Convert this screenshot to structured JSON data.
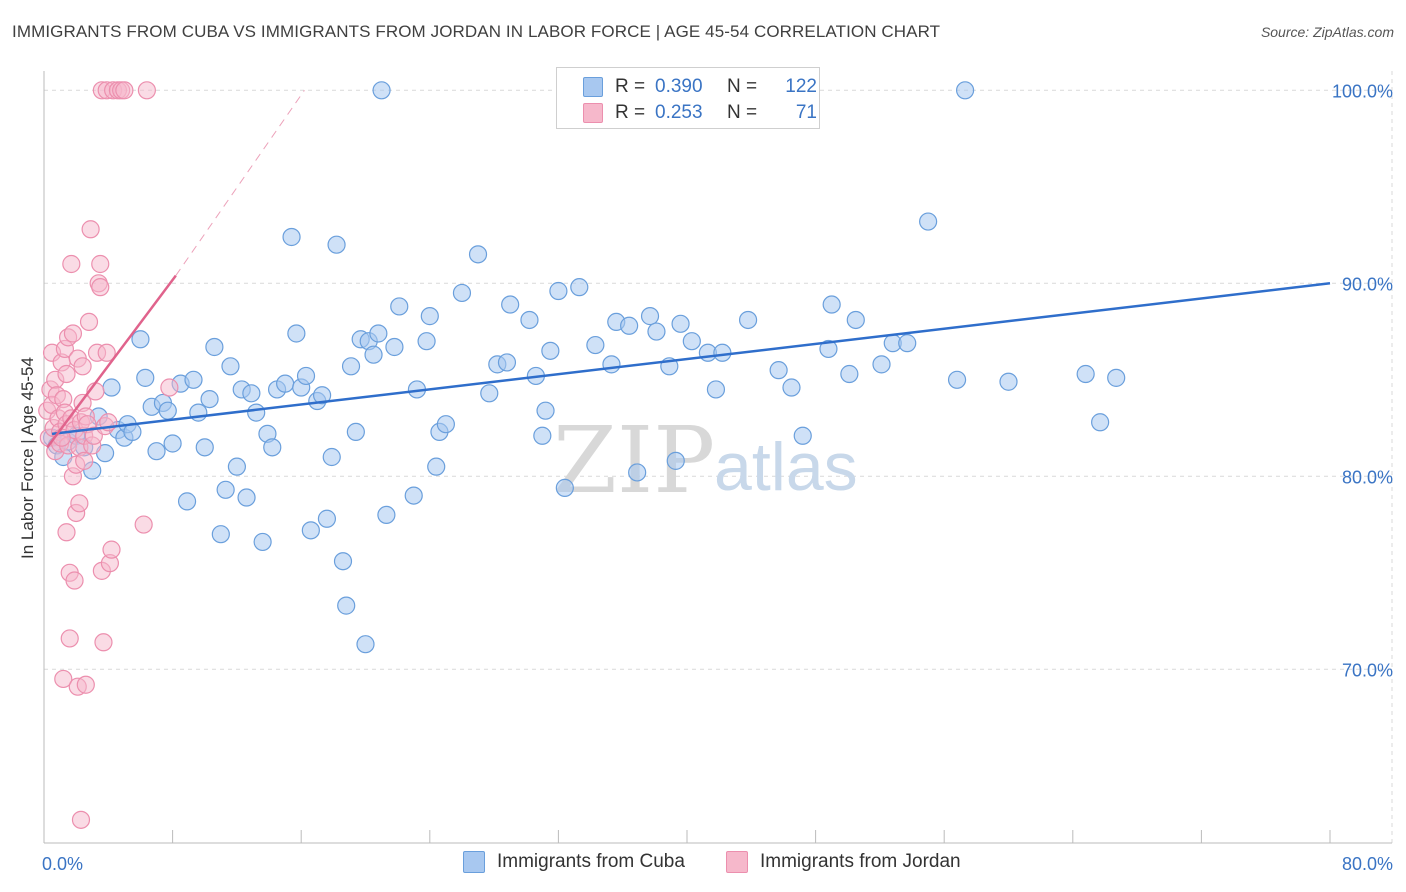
{
  "title": "IMMIGRANTS FROM CUBA VS IMMIGRANTS FROM JORDAN IN LABOR FORCE | AGE 45-54 CORRELATION CHART",
  "source": "Source: ZipAtlas.com",
  "colors": {
    "cuba_fill": "#a8c8f0",
    "cuba_stroke": "#6a9fdc",
    "cuba_line": "#2f6ecb",
    "jordan_fill": "#f6b8cb",
    "jordan_stroke": "#ec8fae",
    "jordan_line": "#e0638c",
    "tick": "#3a74c4",
    "grid": "#d9d9d9"
  },
  "legend_top": {
    "rows": [
      {
        "r_label": "R =",
        "r_value": "0.390",
        "n_label": "N =",
        "n_value": "122"
      },
      {
        "r_label": "R =",
        "r_value": "0.253",
        "n_label": "N =",
        "n_value": "71"
      }
    ]
  },
  "legend_bottom": {
    "cuba": "Immigrants from Cuba",
    "jordan": "Immigrants from Jordan"
  },
  "watermark": {
    "zip": "ZIP",
    "atlas": "atlas"
  },
  "chart_data": {
    "type": "scatter",
    "title": "IMMIGRANTS FROM CUBA VS IMMIGRANTS FROM JORDAN IN LABOR FORCE | AGE 45-54 CORRELATION CHART",
    "xlabel": "",
    "ylabel": "In Labor Force | Age 45-54",
    "xlim": [
      0,
      80
    ],
    "ylim": [
      61,
      101
    ],
    "x_tick_labels": [
      "0.0%",
      "80.0%"
    ],
    "y_ticks": [
      70,
      80,
      90,
      100
    ],
    "y_tick_labels": [
      "70.0%",
      "80.0%",
      "90.0%",
      "100.0%"
    ],
    "grid": true,
    "series": [
      {
        "name": "Immigrants from Cuba",
        "r": 0.39,
        "n": 122,
        "trend": {
          "x0": 0.5,
          "y0": 82.2,
          "x1": 80,
          "y1": 90.0
        },
        "points": [
          [
            0.5,
            82.0
          ],
          [
            0.8,
            81.6
          ],
          [
            1.2,
            81.0
          ],
          [
            1.5,
            81.8
          ],
          [
            2.0,
            82.1
          ],
          [
            2.5,
            81.5
          ],
          [
            3.0,
            80.3
          ],
          [
            3.4,
            83.1
          ],
          [
            3.8,
            81.2
          ],
          [
            4.2,
            84.6
          ],
          [
            4.6,
            82.4
          ],
          [
            5.0,
            82.0
          ],
          [
            5.2,
            82.7
          ],
          [
            5.5,
            82.3
          ],
          [
            6.0,
            87.1
          ],
          [
            6.3,
            85.1
          ],
          [
            6.7,
            83.6
          ],
          [
            7.0,
            81.3
          ],
          [
            7.4,
            83.8
          ],
          [
            7.7,
            83.4
          ],
          [
            8.0,
            81.7
          ],
          [
            8.5,
            84.8
          ],
          [
            8.9,
            78.7
          ],
          [
            9.3,
            85.0
          ],
          [
            9.6,
            83.3
          ],
          [
            10.0,
            81.5
          ],
          [
            10.3,
            84.0
          ],
          [
            10.6,
            86.7
          ],
          [
            11.0,
            77.0
          ],
          [
            11.3,
            79.3
          ],
          [
            11.6,
            85.7
          ],
          [
            12.0,
            80.5
          ],
          [
            12.3,
            84.5
          ],
          [
            12.6,
            78.9
          ],
          [
            12.9,
            84.3
          ],
          [
            13.2,
            83.3
          ],
          [
            13.6,
            76.6
          ],
          [
            13.9,
            82.2
          ],
          [
            14.2,
            81.5
          ],
          [
            14.5,
            84.5
          ],
          [
            15.0,
            84.8
          ],
          [
            15.4,
            92.4
          ],
          [
            15.7,
            87.4
          ],
          [
            16.0,
            84.6
          ],
          [
            16.3,
            85.2
          ],
          [
            16.6,
            77.2
          ],
          [
            17.0,
            83.9
          ],
          [
            17.3,
            84.2
          ],
          [
            17.6,
            77.8
          ],
          [
            17.9,
            81.0
          ],
          [
            18.2,
            92.0
          ],
          [
            18.6,
            75.6
          ],
          [
            18.8,
            73.3
          ],
          [
            19.1,
            85.7
          ],
          [
            19.4,
            82.3
          ],
          [
            19.7,
            87.1
          ],
          [
            20.0,
            71.3
          ],
          [
            20.2,
            87.0
          ],
          [
            20.5,
            86.3
          ],
          [
            20.8,
            87.4
          ],
          [
            21.0,
            100.0
          ],
          [
            21.3,
            78.0
          ],
          [
            21.8,
            86.7
          ],
          [
            22.1,
            88.8
          ],
          [
            23.0,
            79.0
          ],
          [
            23.2,
            84.5
          ],
          [
            23.8,
            87.0
          ],
          [
            24.0,
            88.3
          ],
          [
            24.4,
            80.5
          ],
          [
            24.6,
            82.3
          ],
          [
            25.0,
            82.7
          ],
          [
            26.0,
            89.5
          ],
          [
            27.0,
            91.5
          ],
          [
            27.7,
            84.3
          ],
          [
            28.2,
            85.8
          ],
          [
            28.8,
            85.9
          ],
          [
            29.0,
            88.9
          ],
          [
            30.2,
            88.1
          ],
          [
            30.6,
            85.2
          ],
          [
            31.0,
            82.1
          ],
          [
            31.2,
            83.4
          ],
          [
            31.5,
            86.5
          ],
          [
            32.0,
            89.6
          ],
          [
            32.4,
            79.4
          ],
          [
            33.3,
            89.8
          ],
          [
            34.3,
            86.8
          ],
          [
            35.3,
            85.8
          ],
          [
            35.6,
            88.0
          ],
          [
            36.4,
            87.8
          ],
          [
            36.9,
            80.2
          ],
          [
            37.7,
            88.3
          ],
          [
            38.1,
            87.5
          ],
          [
            38.9,
            85.7
          ],
          [
            39.3,
            80.8
          ],
          [
            39.6,
            87.9
          ],
          [
            40.3,
            87.0
          ],
          [
            41.3,
            86.4
          ],
          [
            41.8,
            84.5
          ],
          [
            42.2,
            86.4
          ],
          [
            43.8,
            88.1
          ],
          [
            45.7,
            85.5
          ],
          [
            46.5,
            84.6
          ],
          [
            47.2,
            82.1
          ],
          [
            48.8,
            86.6
          ],
          [
            49.0,
            88.9
          ],
          [
            50.1,
            85.3
          ],
          [
            50.5,
            88.1
          ],
          [
            52.1,
            85.8
          ],
          [
            52.8,
            86.9
          ],
          [
            53.7,
            86.9
          ],
          [
            55.0,
            93.2
          ],
          [
            56.8,
            85.0
          ],
          [
            57.3,
            100.0
          ],
          [
            60.0,
            84.9
          ],
          [
            64.8,
            85.3
          ],
          [
            65.7,
            82.8
          ],
          [
            66.7,
            85.1
          ]
        ]
      },
      {
        "name": "Immigrants from Jordan",
        "r": 0.253,
        "n": 71,
        "trend": {
          "x0": 0.2,
          "y0": 81.5,
          "x1": 8.2,
          "y1": 90.4
        },
        "trend_ext": {
          "x0": 8.2,
          "y0": 90.4,
          "x1": 16.2,
          "y1": 100.0
        },
        "points": [
          [
            0.2,
            83.4
          ],
          [
            0.3,
            82.0
          ],
          [
            0.4,
            84.5
          ],
          [
            0.5,
            86.4
          ],
          [
            0.5,
            83.7
          ],
          [
            0.6,
            82.5
          ],
          [
            0.7,
            85.0
          ],
          [
            0.7,
            81.3
          ],
          [
            0.8,
            84.2
          ],
          [
            0.9,
            83.0
          ],
          [
            1.0,
            82.3
          ],
          [
            1.0,
            81.7
          ],
          [
            1.1,
            85.9
          ],
          [
            1.2,
            84.0
          ],
          [
            1.2,
            69.5
          ],
          [
            1.3,
            86.6
          ],
          [
            1.3,
            83.3
          ],
          [
            1.4,
            85.3
          ],
          [
            1.4,
            82.7
          ],
          [
            1.4,
            77.1
          ],
          [
            1.5,
            87.2
          ],
          [
            1.5,
            81.6
          ],
          [
            1.6,
            75.0
          ],
          [
            1.6,
            71.6
          ],
          [
            1.7,
            91.0
          ],
          [
            1.7,
            83.0
          ],
          [
            1.8,
            80.0
          ],
          [
            1.8,
            87.4
          ],
          [
            1.9,
            82.4
          ],
          [
            1.9,
            74.6
          ],
          [
            2.0,
            80.6
          ],
          [
            2.0,
            78.1
          ],
          [
            2.1,
            86.1
          ],
          [
            2.1,
            69.1
          ],
          [
            2.2,
            81.5
          ],
          [
            2.2,
            78.6
          ],
          [
            2.3,
            82.8
          ],
          [
            2.3,
            62.2
          ],
          [
            2.4,
            83.8
          ],
          [
            2.4,
            85.7
          ],
          [
            2.5,
            82.1
          ],
          [
            2.5,
            80.8
          ],
          [
            2.6,
            83.1
          ],
          [
            2.6,
            69.2
          ],
          [
            2.7,
            82.7
          ],
          [
            2.8,
            88.0
          ],
          [
            2.9,
            92.8
          ],
          [
            3.0,
            81.6
          ],
          [
            3.1,
            82.1
          ],
          [
            3.2,
            84.4
          ],
          [
            3.3,
            86.4
          ],
          [
            3.4,
            90.0
          ],
          [
            3.5,
            89.8
          ],
          [
            3.5,
            91.0
          ],
          [
            3.6,
            75.1
          ],
          [
            3.7,
            71.4
          ],
          [
            3.8,
            82.6
          ],
          [
            3.9,
            86.4
          ],
          [
            4.0,
            82.8
          ],
          [
            4.1,
            75.5
          ],
          [
            4.2,
            76.2
          ],
          [
            3.6,
            100.0
          ],
          [
            3.9,
            100.0
          ],
          [
            4.3,
            100.0
          ],
          [
            4.6,
            100.0
          ],
          [
            4.8,
            100.0
          ],
          [
            5.0,
            100.0
          ],
          [
            6.2,
            77.5
          ],
          [
            6.4,
            100.0
          ],
          [
            7.8,
            84.6
          ],
          [
            1.1,
            82.0
          ]
        ]
      }
    ]
  }
}
